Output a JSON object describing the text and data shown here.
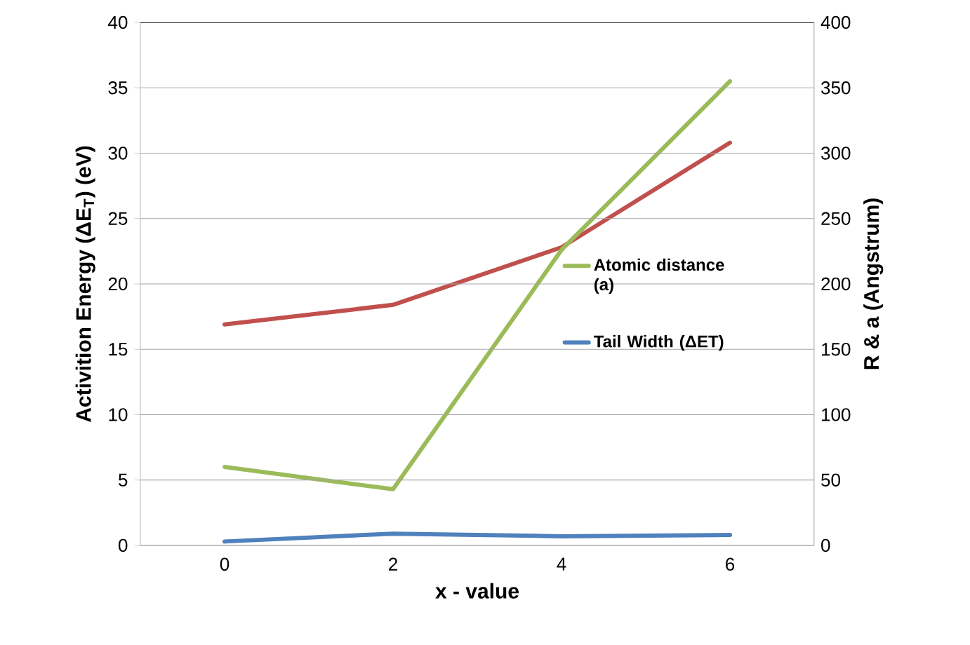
{
  "chart_data": {
    "type": "line",
    "xlabel": "x - value",
    "ylabel": "Activition Energy (ΔE$_{T}$) (eV)",
    "y2label": "R & a (Angstrum)",
    "categories": [
      "0",
      "2",
      "4",
      "6"
    ],
    "series": [
      {
        "color": "#c0504d",
        "axis": "y2",
        "values": [
          169,
          184,
          228,
          308
        ]
      },
      {
        "name": "Atomic distance (a)",
        "color": "#9bbb59",
        "axis": "y2",
        "values": [
          60,
          43,
          226,
          355
        ]
      },
      {
        "name": "Tail Width (ΔET)",
        "color": "#4f81bd",
        "values": [
          0.3,
          0.9,
          0.7,
          0.8
        ]
      }
    ],
    "ylim": [
      0,
      40
    ],
    "yticks": [
      0,
      5,
      10,
      15,
      20,
      25,
      30,
      35,
      40
    ],
    "y2lim": [
      0,
      400
    ],
    "y2ticks": [
      0,
      50,
      100,
      150,
      200,
      250,
      300,
      350,
      400
    ],
    "grid": "y",
    "legend": "right",
    "marker": "none",
    "line_style": "solid"
  }
}
